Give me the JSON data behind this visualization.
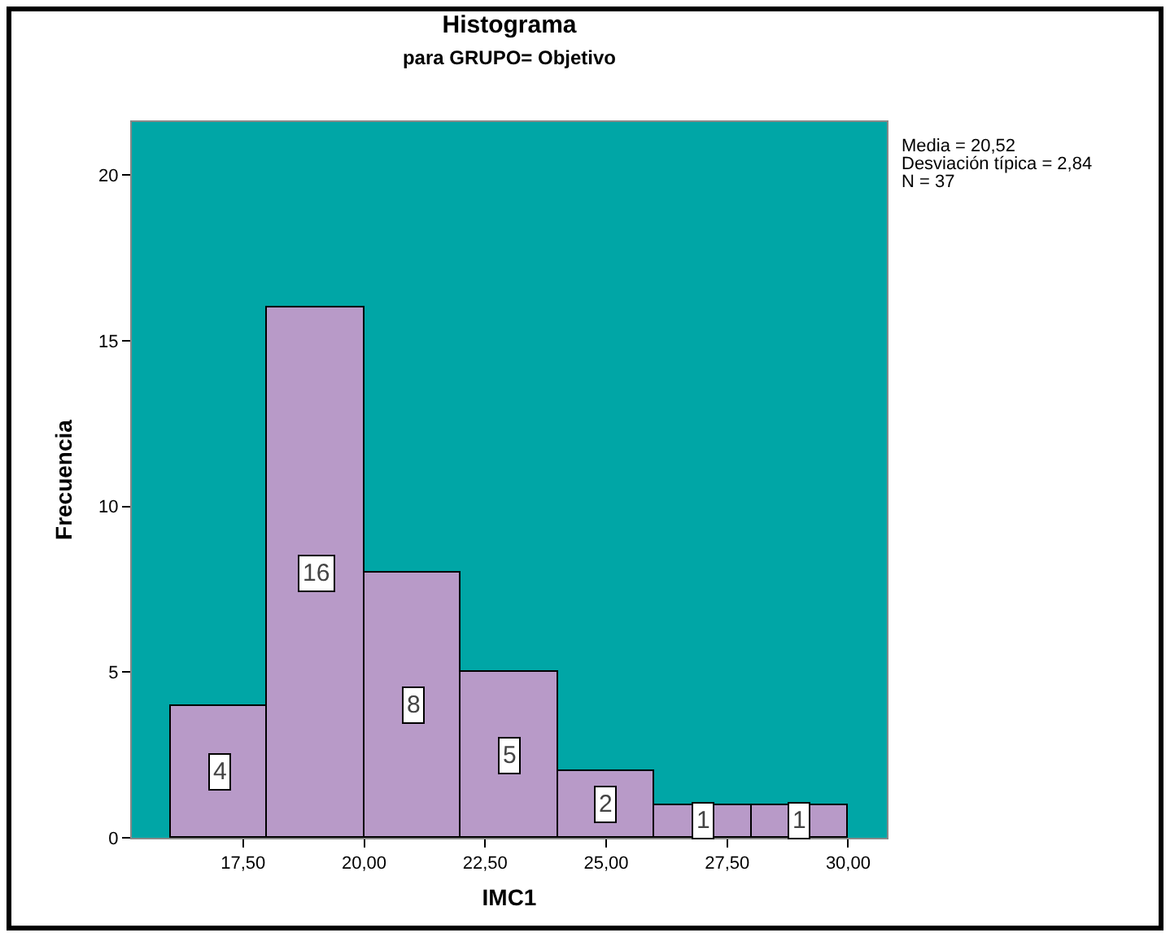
{
  "chart_data": {
    "type": "histogram",
    "title": "Histograma",
    "subtitle": "para GRUPO= Objetivo",
    "xlabel": "IMC1",
    "ylabel": "Frecuencia",
    "bins": [
      16,
      18,
      20,
      22,
      24,
      26,
      28,
      30
    ],
    "values": [
      4,
      16,
      8,
      5,
      2,
      1,
      1
    ],
    "color": "#b89ac8",
    "data_labels": true,
    "xlim": [
      15.2,
      30.8
    ],
    "xticks": [
      {
        "value": 17.5,
        "label": "17,50"
      },
      {
        "value": 20,
        "label": "20,00"
      },
      {
        "value": 22.5,
        "label": "22,50"
      },
      {
        "value": 25,
        "label": "25,00"
      },
      {
        "value": 27.5,
        "label": "27,50"
      },
      {
        "value": 30,
        "label": "30,00"
      }
    ],
    "ylim": [
      0,
      21.6
    ],
    "yticks": [
      0,
      5,
      10,
      15,
      20
    ],
    "grid": false,
    "annotations": [
      "Media = 20,52",
      "Desviación típica = 2,84",
      "N = 37"
    ]
  }
}
